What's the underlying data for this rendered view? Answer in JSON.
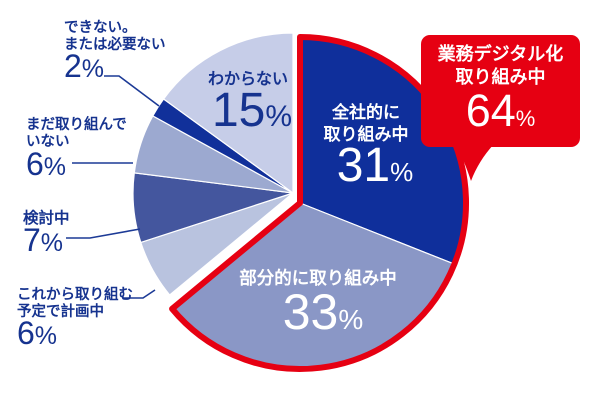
{
  "percent_sign": "%",
  "colors": {
    "highlight_red": "#e60012",
    "navy_text": "#16338f",
    "leader_line": "#1c3a96",
    "white": "#ffffff"
  },
  "chart_data": {
    "type": "pie",
    "unit": "%",
    "start_angle_deg": 0,
    "direction": "clockwise",
    "legend_position": "none",
    "categories": [
      "全社的に取り組み中",
      "部分的に取り組み中",
      "これから取り組む予定で計画中",
      "検討中",
      "まだ取り組んでいない",
      "できない。または必要ない",
      "わからない"
    ],
    "values": [
      31,
      33,
      6,
      7,
      6,
      2,
      15
    ],
    "segments": [
      {
        "label": "全社的に取り組み中",
        "value": 31,
        "color": "#0f2f9b",
        "highlight": true
      },
      {
        "label": "部分的に取り組み中",
        "value": 33,
        "color": "#8a97c6",
        "highlight": true
      },
      {
        "label": "これから取り組む予定で計画中",
        "value": 6,
        "color": "#b9c3df",
        "highlight": false
      },
      {
        "label": "検討中",
        "value": 7,
        "color": "#44569e",
        "highlight": false
      },
      {
        "label": "まだ取り組んでいない",
        "value": 6,
        "color": "#9ca9d0",
        "highlight": false
      },
      {
        "label": "できない。または必要ない",
        "value": 2,
        "color": "#11309a",
        "highlight": false
      },
      {
        "label": "わからない",
        "value": 15,
        "color": "#c6cde8",
        "highlight": false
      }
    ],
    "highlight_callout": {
      "label": "業務デジタル化取り組み中",
      "value": 64,
      "color": "#e60012"
    }
  },
  "labels": {
    "dekinai": {
      "line1": "できない。",
      "line2": "または必要ない",
      "value": "2"
    },
    "mada": {
      "line1": "まだ取り組んで",
      "line2": "いない",
      "value": "6"
    },
    "kento": {
      "line1": "検討中",
      "value": "7"
    },
    "korekara": {
      "line1": "これから取り組む",
      "line2": "予定で計画中",
      "value": "6"
    },
    "wakaranai": {
      "line1": "わからない",
      "value": "15"
    },
    "zensha": {
      "line1": "全社的に",
      "line2": "取り組み中",
      "value": "31"
    },
    "bubun": {
      "line1": "部分的に取り組み中",
      "value": "33"
    }
  },
  "callout": {
    "line1": "業務デジタル化",
    "line2": "取り組み中",
    "value": "64"
  }
}
